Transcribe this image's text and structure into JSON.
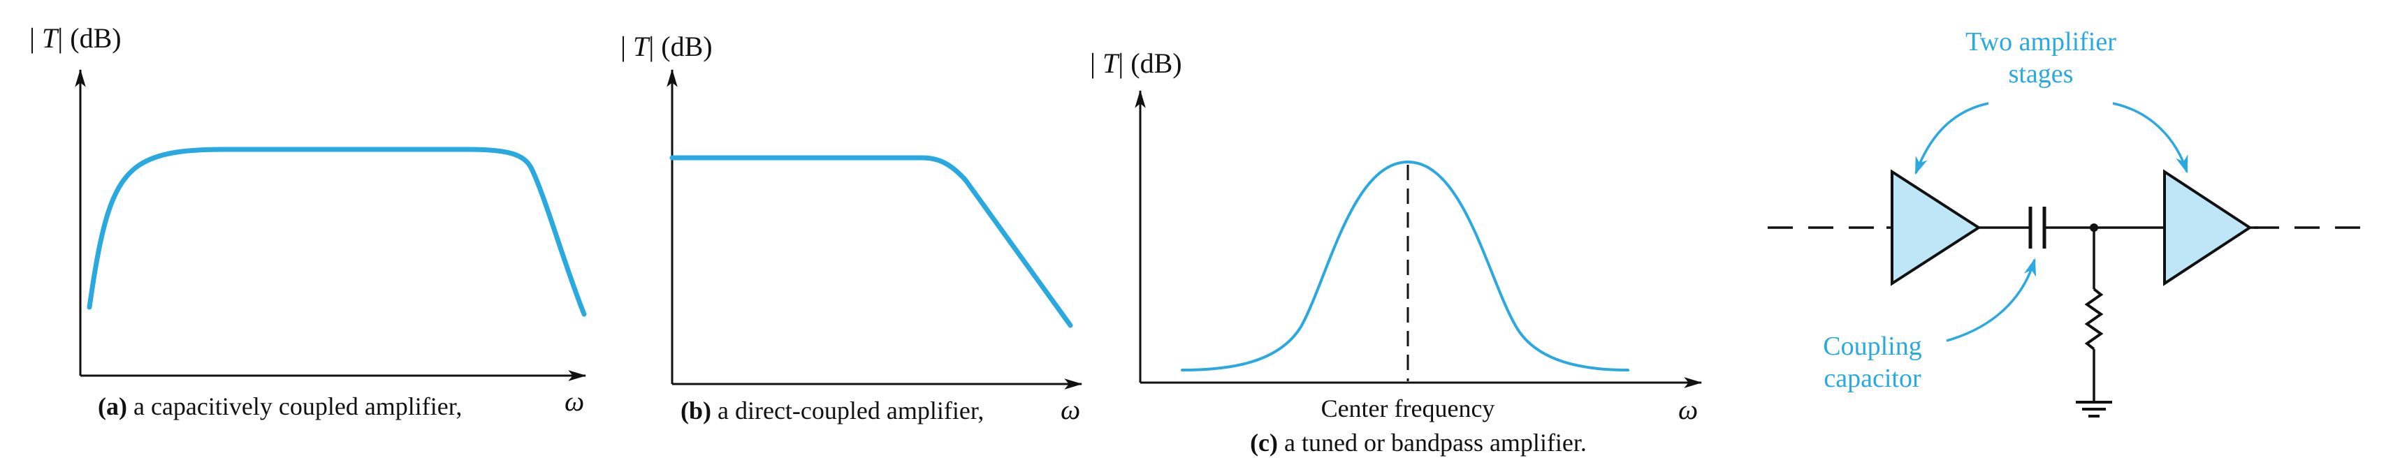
{
  "panel_a": {
    "ylabel_t": "T",
    "ylabel_unit": "(dB)",
    "xlabel": "ω",
    "caption_tag": "(a)",
    "caption_text": " a capacitively coupled amplifier,"
  },
  "panel_b": {
    "ylabel_t": "T",
    "ylabel_unit": "(dB)",
    "xlabel": "ω",
    "caption_tag": "(b)",
    "caption_text": " a direct-coupled amplifier,"
  },
  "panel_c": {
    "ylabel_t": "T",
    "ylabel_unit": "(dB)",
    "xlabel": "ω",
    "center_label": "Center frequency",
    "caption_tag": "(c)",
    "caption_text": " a tuned or bandpass amplifier."
  },
  "circuit": {
    "stages_label_line1": "Two amplifier",
    "stages_label_line2": "stages",
    "coupling_label_line1": "Coupling",
    "coupling_label_line2": "capacitor"
  },
  "colors": {
    "curve": "#29a9e0",
    "amp_fill": "#bfe6f7",
    "ink": "#111111"
  }
}
